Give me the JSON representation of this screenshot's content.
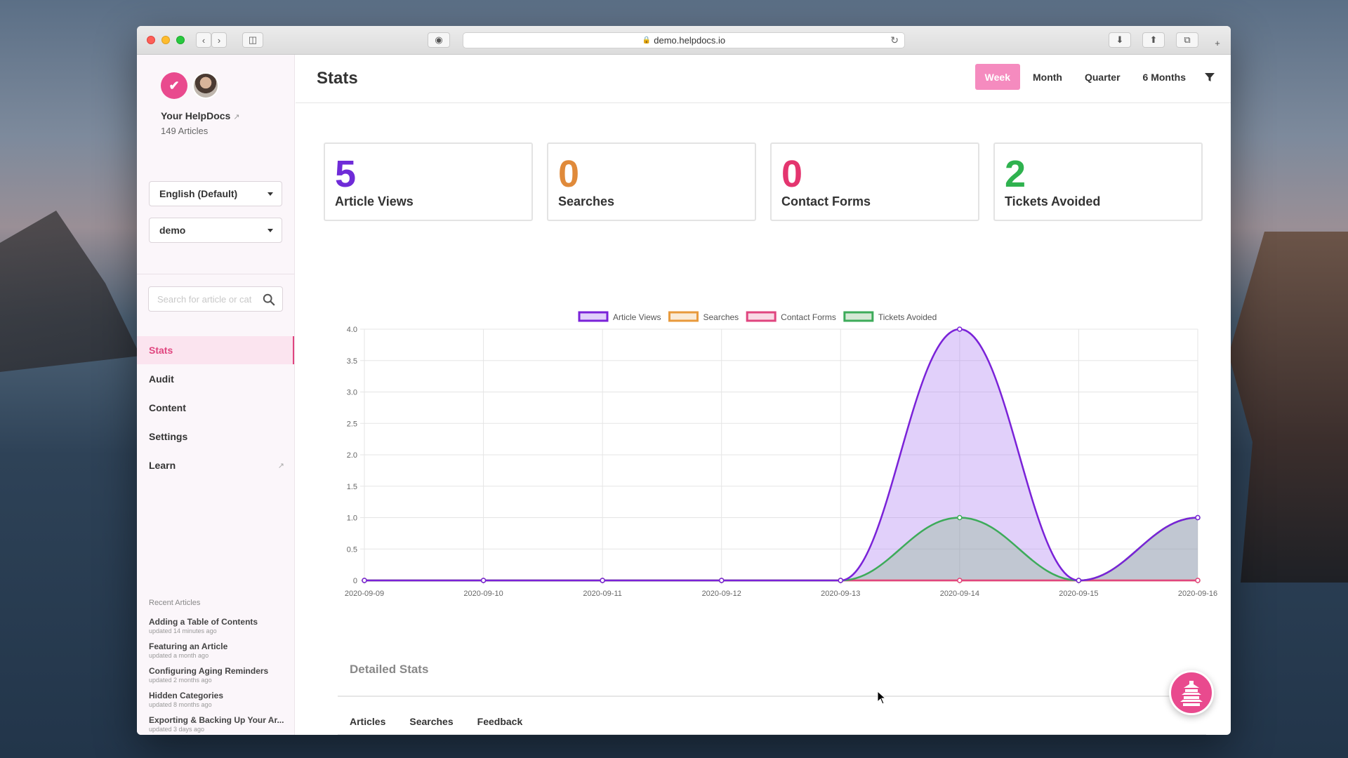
{
  "browser": {
    "url": "demo.helpdocs.io"
  },
  "sidebar": {
    "site_name": "Your HelpDocs",
    "article_count": "149 Articles",
    "language_select": "English (Default)",
    "workspace_select": "demo",
    "search_placeholder": "Search for article or cat",
    "nav": [
      {
        "label": "Stats",
        "active": true
      },
      {
        "label": "Audit"
      },
      {
        "label": "Content"
      },
      {
        "label": "Settings"
      },
      {
        "label": "Learn",
        "external": true
      }
    ],
    "recent_heading": "Recent Articles",
    "recent": [
      {
        "title": "Adding a Table of Contents",
        "time": "updated 14 minutes ago"
      },
      {
        "title": "Featuring an Article",
        "time": "updated a month ago"
      },
      {
        "title": "Configuring Aging Reminders",
        "time": "updated 2 months ago"
      },
      {
        "title": "Hidden Categories",
        "time": "updated 8 months ago"
      },
      {
        "title": "Exporting & Backing Up Your Ar...",
        "time": "updated 3 days ago"
      }
    ]
  },
  "header": {
    "title": "Stats",
    "ranges": [
      "Week",
      "Month",
      "Quarter",
      "6 Months"
    ],
    "active_range": "Week"
  },
  "cards": [
    {
      "value": "5",
      "label": "Article Views",
      "color": "#6f2bd8"
    },
    {
      "value": "0",
      "label": "Searches",
      "color": "#e08a3a"
    },
    {
      "value": "0",
      "label": "Contact Forms",
      "color": "#e4356f"
    },
    {
      "value": "2",
      "label": "Tickets Avoided",
      "color": "#2fb24f"
    }
  ],
  "chart_data": {
    "type": "area",
    "categories": [
      "2020-09-09",
      "2020-09-10",
      "2020-09-11",
      "2020-09-12",
      "2020-09-13",
      "2020-09-14",
      "2020-09-15",
      "2020-09-16"
    ],
    "ylim": [
      0,
      4
    ],
    "yticks": [
      "0",
      "0.5",
      "1.0",
      "1.5",
      "2.0",
      "2.5",
      "3.0",
      "3.5",
      "4.0"
    ],
    "legend_position": "top",
    "grid": true,
    "series": [
      {
        "name": "Article Views",
        "values": [
          0,
          0,
          0,
          0,
          0,
          4,
          0,
          1
        ],
        "color": "#7a22d8",
        "fill": "rgba(170,120,240,0.35)"
      },
      {
        "name": "Searches",
        "values": [
          0,
          0,
          0,
          0,
          0,
          0,
          0,
          0
        ],
        "color": "#e89a3c",
        "fill": "rgba(232,154,60,0.2)"
      },
      {
        "name": "Contact Forms",
        "values": [
          0,
          0,
          0,
          0,
          0,
          0,
          0,
          0
        ],
        "color": "#e0457f",
        "fill": "rgba(224,69,127,0.2)"
      },
      {
        "name": "Tickets Avoided",
        "values": [
          0,
          0,
          0,
          0,
          0,
          1,
          0,
          1
        ],
        "color": "#3dab5a",
        "fill": "rgba(120,180,120,0.3)"
      }
    ]
  },
  "detailed": {
    "title": "Detailed Stats",
    "tabs": [
      "Articles",
      "Searches",
      "Feedback"
    ]
  }
}
